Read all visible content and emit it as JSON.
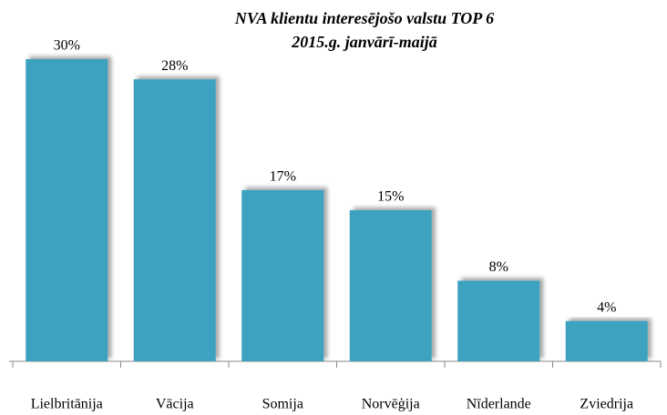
{
  "chart_data": {
    "type": "bar",
    "title": "NVA klientu interesējošo valstu TOP 6",
    "subtitle": "2015.g. janvārī-maijā",
    "categories": [
      "Lielbritānija",
      "Vācija",
      "Somija",
      "Norvēģija",
      "Nīderlande",
      "Zviedrija"
    ],
    "values": [
      30,
      28,
      17,
      15,
      8,
      4
    ],
    "value_labels": [
      "30%",
      "28%",
      "17%",
      "15%",
      "8%",
      "4%"
    ],
    "color": "#3ea2bf"
  }
}
